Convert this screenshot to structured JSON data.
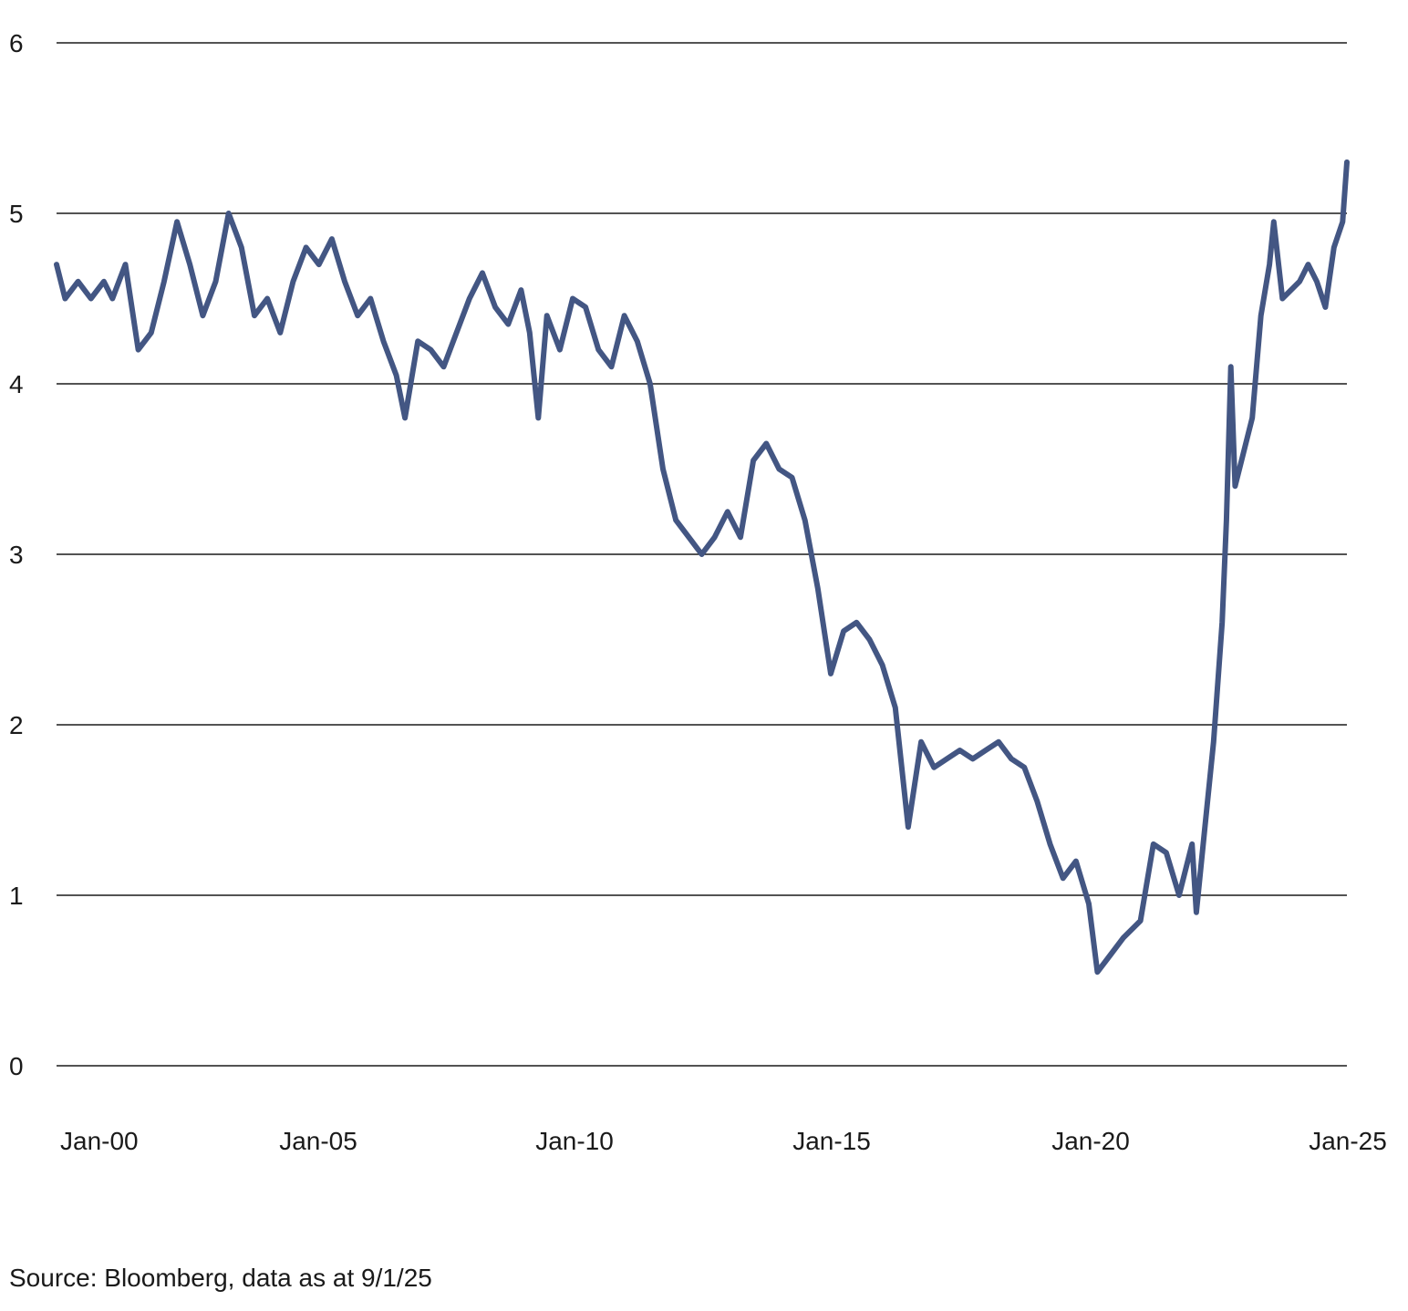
{
  "chart_data": {
    "type": "line",
    "title": "",
    "xlabel": "",
    "ylabel": "",
    "ylim": [
      0,
      6
    ],
    "xlim": [
      "2000-01",
      "2025-01"
    ],
    "yticks": [
      "0",
      "1",
      "2",
      "3",
      "4",
      "5",
      "6"
    ],
    "xticks": [
      "Jan-00",
      "Jan-05",
      "Jan-10",
      "Jan-15",
      "Jan-20",
      "Jan-25"
    ],
    "grid": "horizontal",
    "line_color": "#435683",
    "series": [
      {
        "name": "",
        "points": [
          [
            "2000-01",
            4.7
          ],
          [
            "2000-03",
            4.5
          ],
          [
            "2000-06",
            4.6
          ],
          [
            "2000-09",
            4.5
          ],
          [
            "2000-12",
            4.6
          ],
          [
            "2001-02",
            4.5
          ],
          [
            "2001-05",
            4.7
          ],
          [
            "2001-08",
            4.2
          ],
          [
            "2001-11",
            4.3
          ],
          [
            "2002-02",
            4.6
          ],
          [
            "2002-05",
            4.95
          ],
          [
            "2002-08",
            4.7
          ],
          [
            "2002-11",
            4.4
          ],
          [
            "2003-02",
            4.6
          ],
          [
            "2003-05",
            5.0
          ],
          [
            "2003-08",
            4.8
          ],
          [
            "2003-11",
            4.4
          ],
          [
            "2004-02",
            4.5
          ],
          [
            "2004-05",
            4.3
          ],
          [
            "2004-08",
            4.6
          ],
          [
            "2004-11",
            4.8
          ],
          [
            "2005-02",
            4.7
          ],
          [
            "2005-05",
            4.85
          ],
          [
            "2005-08",
            4.6
          ],
          [
            "2005-11",
            4.4
          ],
          [
            "2006-02",
            4.5
          ],
          [
            "2006-05",
            4.25
          ],
          [
            "2006-08",
            4.05
          ],
          [
            "2006-10",
            3.8
          ],
          [
            "2007-01",
            4.25
          ],
          [
            "2007-04",
            4.2
          ],
          [
            "2007-07",
            4.1
          ],
          [
            "2007-10",
            4.3
          ],
          [
            "2008-01",
            4.5
          ],
          [
            "2008-04",
            4.65
          ],
          [
            "2008-07",
            4.45
          ],
          [
            "2008-10",
            4.35
          ],
          [
            "2009-01",
            4.55
          ],
          [
            "2009-03",
            4.3
          ],
          [
            "2009-05",
            3.8
          ],
          [
            "2009-07",
            4.4
          ],
          [
            "2009-10",
            4.2
          ],
          [
            "2010-01",
            4.5
          ],
          [
            "2010-04",
            4.45
          ],
          [
            "2010-07",
            4.2
          ],
          [
            "2010-10",
            4.1
          ],
          [
            "2011-01",
            4.4
          ],
          [
            "2011-04",
            4.25
          ],
          [
            "2011-07",
            4.0
          ],
          [
            "2011-10",
            3.5
          ],
          [
            "2012-01",
            3.2
          ],
          [
            "2012-04",
            3.1
          ],
          [
            "2012-07",
            3.0
          ],
          [
            "2012-10",
            3.1
          ],
          [
            "2013-01",
            3.25
          ],
          [
            "2013-04",
            3.1
          ],
          [
            "2013-07",
            3.55
          ],
          [
            "2013-10",
            3.65
          ],
          [
            "2014-01",
            3.5
          ],
          [
            "2014-04",
            3.45
          ],
          [
            "2014-07",
            3.2
          ],
          [
            "2014-10",
            2.8
          ],
          [
            "2015-01",
            2.3
          ],
          [
            "2015-04",
            2.55
          ],
          [
            "2015-07",
            2.6
          ],
          [
            "2015-10",
            2.5
          ],
          [
            "2016-01",
            2.35
          ],
          [
            "2016-04",
            2.1
          ],
          [
            "2016-07",
            1.4
          ],
          [
            "2016-10",
            1.9
          ],
          [
            "2017-01",
            1.75
          ],
          [
            "2017-04",
            1.8
          ],
          [
            "2017-07",
            1.85
          ],
          [
            "2017-10",
            1.8
          ],
          [
            "2018-01",
            1.85
          ],
          [
            "2018-04",
            1.9
          ],
          [
            "2018-07",
            1.8
          ],
          [
            "2018-10",
            1.75
          ],
          [
            "2019-01",
            1.55
          ],
          [
            "2019-04",
            1.3
          ],
          [
            "2019-07",
            1.1
          ],
          [
            "2019-10",
            1.2
          ],
          [
            "2020-01",
            0.95
          ],
          [
            "2020-03",
            0.55
          ],
          [
            "2020-06",
            0.65
          ],
          [
            "2020-09",
            0.75
          ],
          [
            "2021-01",
            0.85
          ],
          [
            "2021-04",
            1.3
          ],
          [
            "2021-07",
            1.25
          ],
          [
            "2021-10",
            1.0
          ],
          [
            "2022-01",
            1.3
          ],
          [
            "2022-02",
            0.9
          ],
          [
            "2022-04",
            1.4
          ],
          [
            "2022-06",
            1.9
          ],
          [
            "2022-08",
            2.6
          ],
          [
            "2022-09",
            3.2
          ],
          [
            "2022-10",
            4.1
          ],
          [
            "2022-11",
            3.4
          ],
          [
            "2023-01",
            3.6
          ],
          [
            "2023-03",
            3.8
          ],
          [
            "2023-05",
            4.4
          ],
          [
            "2023-07",
            4.7
          ],
          [
            "2023-08",
            4.95
          ],
          [
            "2023-10",
            4.5
          ],
          [
            "2023-12",
            4.55
          ],
          [
            "2024-02",
            4.6
          ],
          [
            "2024-04",
            4.7
          ],
          [
            "2024-06",
            4.6
          ],
          [
            "2024-08",
            4.45
          ],
          [
            "2024-10",
            4.8
          ],
          [
            "2024-12",
            4.95
          ],
          [
            "2025-01",
            5.3
          ]
        ]
      }
    ]
  },
  "footer": {
    "source": "Source: Bloomberg, data as at 9/1/25"
  }
}
